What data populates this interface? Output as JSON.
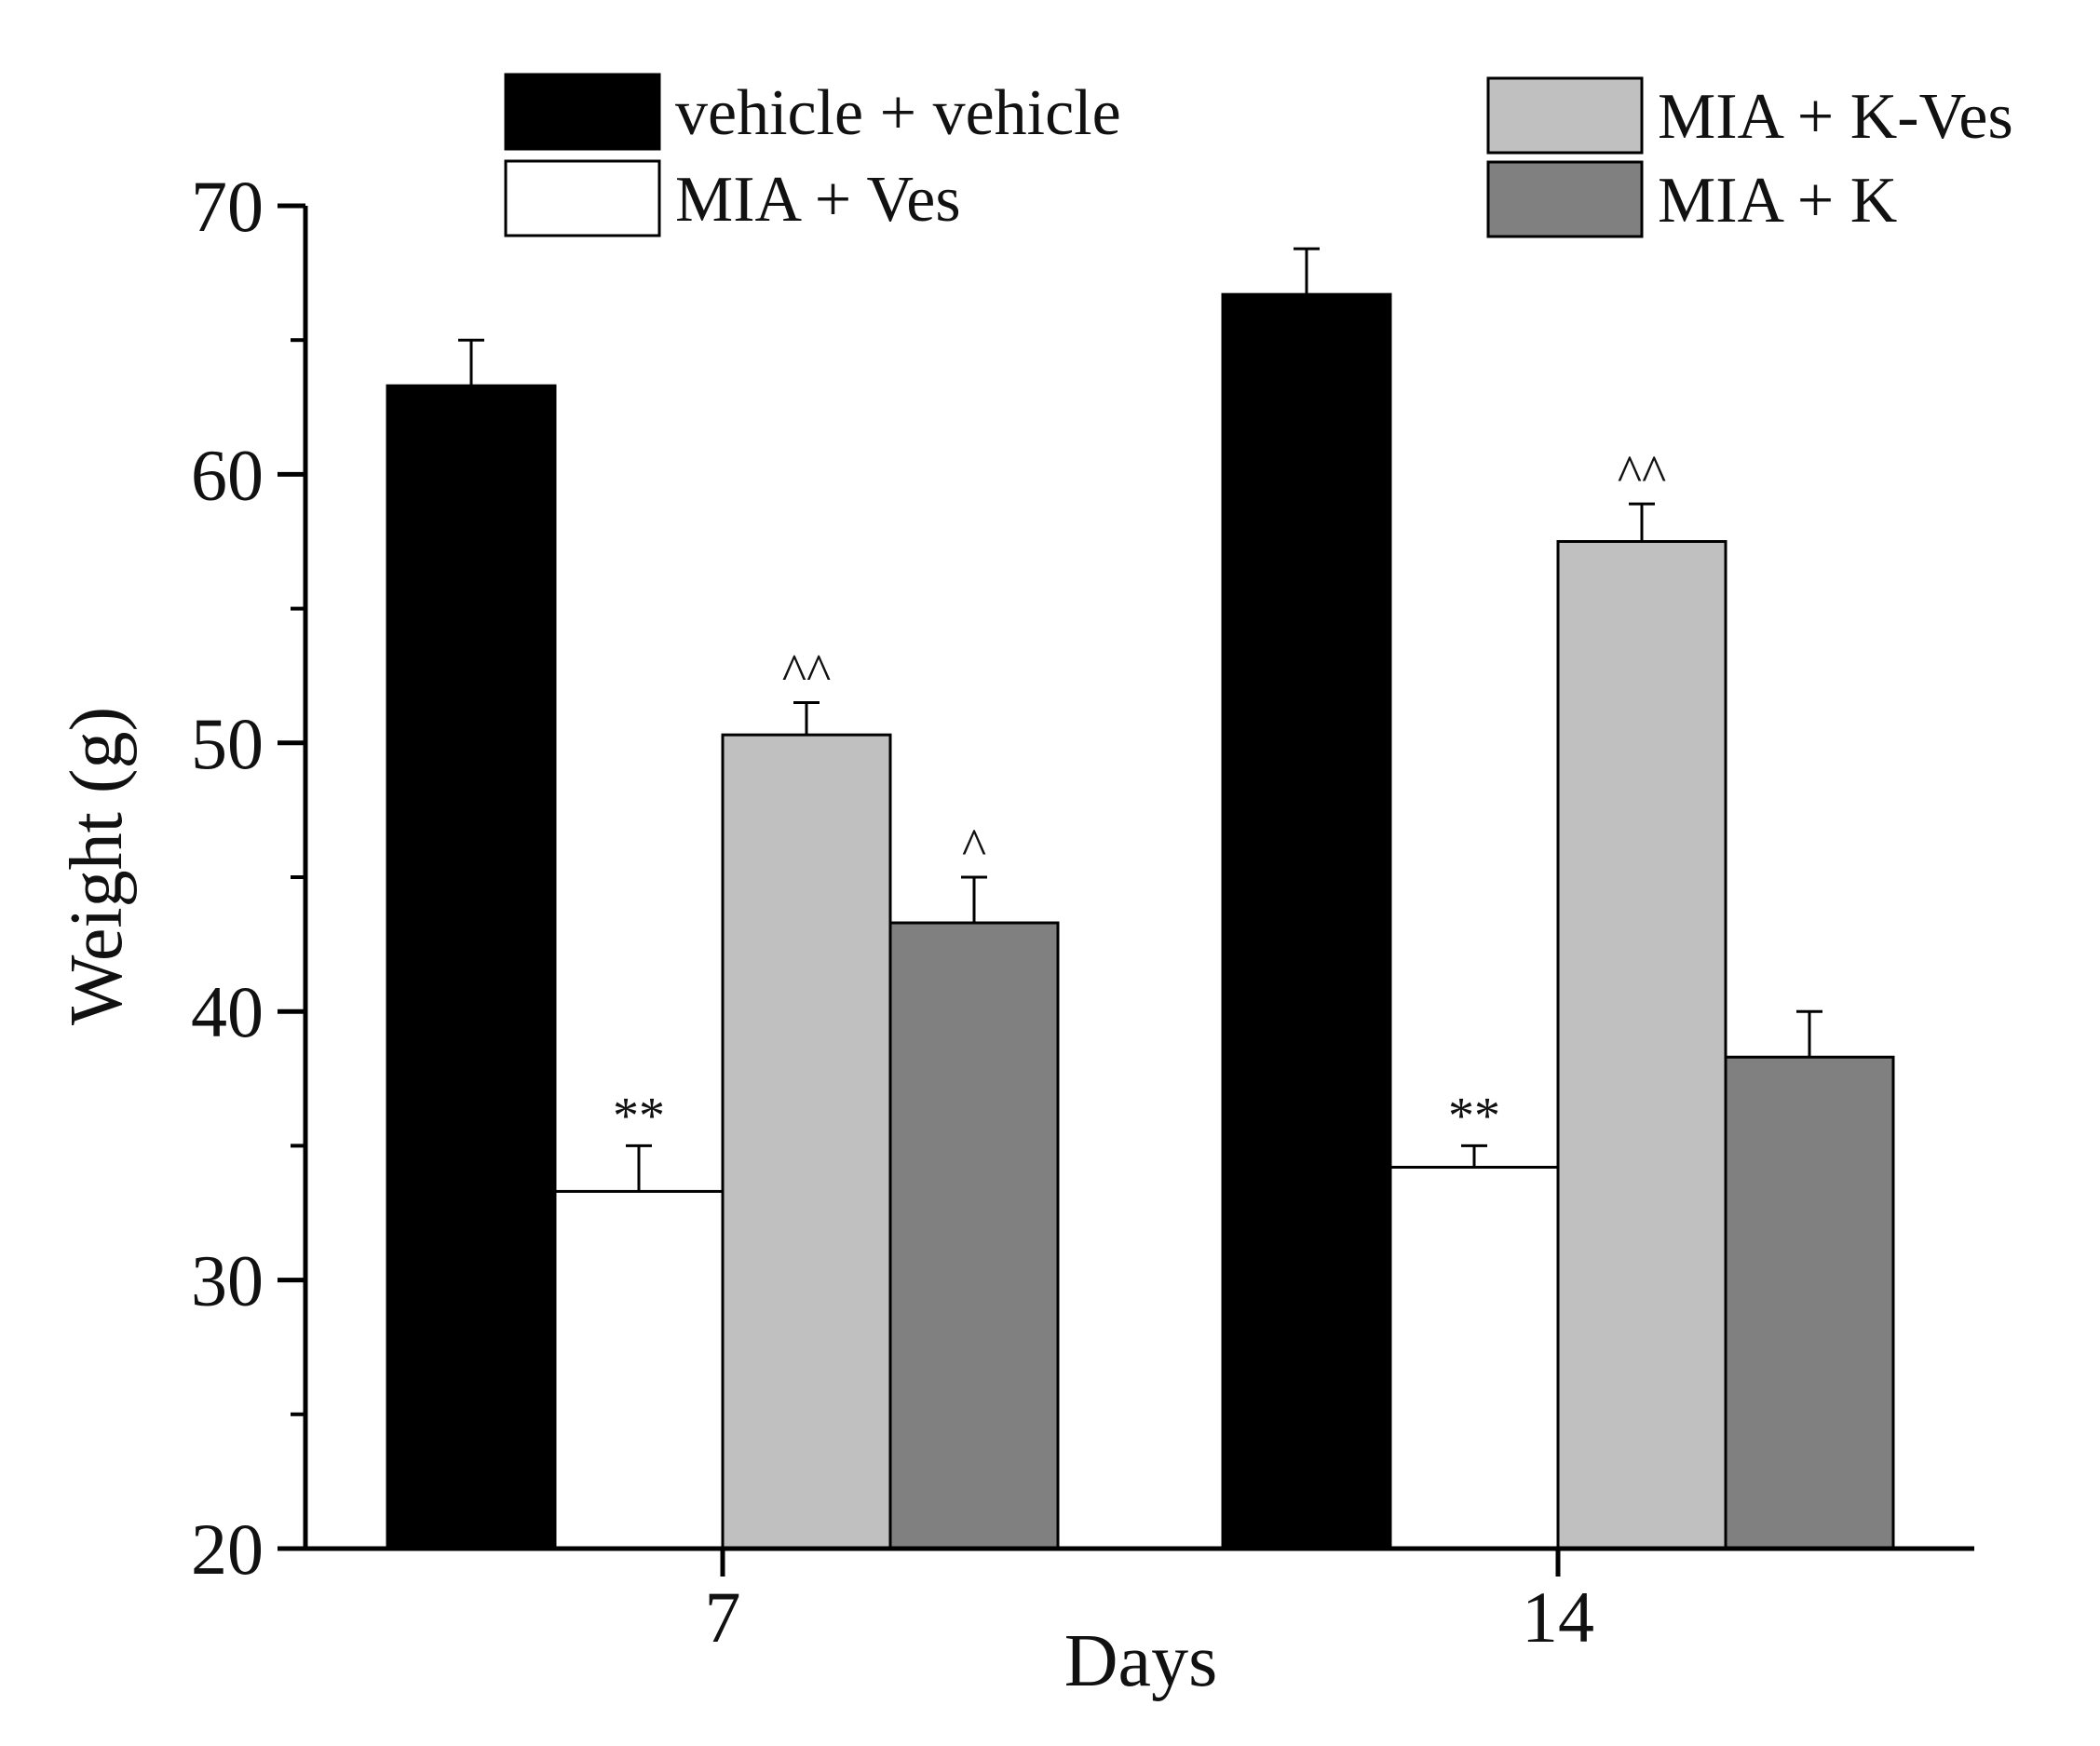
{
  "chart_data": {
    "type": "bar",
    "title": "",
    "xlabel": "Days",
    "ylabel": "Weight (g)",
    "ylim": [
      20,
      70
    ],
    "yticks": [
      20,
      30,
      40,
      50,
      60,
      70
    ],
    "categories": [
      "7",
      "14"
    ],
    "legend_position": "top",
    "series": [
      {
        "name": "vehicle + vehicle",
        "color": "#000000",
        "values": [
          63.3,
          66.7
        ],
        "errors": [
          1.7,
          1.7
        ],
        "annotations": [
          "",
          ""
        ]
      },
      {
        "name": "MIA + Ves",
        "color": "#ffffff",
        "values": [
          33.3,
          34.2
        ],
        "errors": [
          1.7,
          0.8
        ],
        "annotations": [
          "**",
          "**"
        ]
      },
      {
        "name": "MIA + K-Ves",
        "color": "#c0c0c0",
        "values": [
          50.3,
          57.5
        ],
        "errors": [
          1.2,
          1.4
        ],
        "annotations": [
          "^^",
          "^^"
        ]
      },
      {
        "name": "MIA + K",
        "color": "#808080",
        "values": [
          43.3,
          38.3
        ],
        "errors": [
          1.7,
          1.7
        ],
        "annotations": [
          "^",
          ""
        ]
      }
    ]
  }
}
